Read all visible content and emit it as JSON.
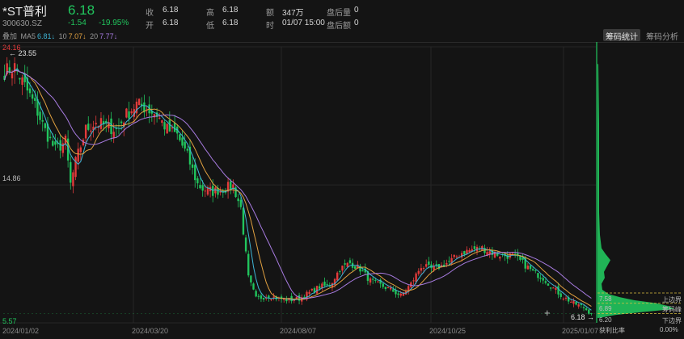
{
  "stock": {
    "name": "*ST普利",
    "code": "300630.SZ",
    "price": "6.18",
    "change": "-1.54",
    "change_pct": "-19.95%",
    "colors": {
      "down": "#21c55d",
      "up": "#e23b3b"
    }
  },
  "quote": {
    "close_label": "收",
    "close": "6.18",
    "open_label": "开",
    "open": "6.18",
    "high_label": "高",
    "high": "6.18",
    "low_label": "低",
    "low": "6.18",
    "amount_label": "额",
    "amount": "347万",
    "time_label": "时",
    "time": "01/07 15:00",
    "after_vol_label": "盘后量",
    "after_vol": "0",
    "after_amt_label": "盘后额",
    "after_amt": "0"
  },
  "ma": {
    "overlay_label": "叠加",
    "ma5_label": "MA5",
    "ma5": "6.81↓",
    "ma10_label": "10",
    "ma10": "7.07↓",
    "ma20_label": "20",
    "ma20": "7.77↓"
  },
  "tabs": [
    "筹码统计",
    "筹码分析"
  ],
  "axis": {
    "y_top": "24.16",
    "y_mid": "14.86",
    "y_bottom": "5.57",
    "max_marker": "23.55",
    "min_marker": "6.18",
    "x_labels": [
      "2024/01/02",
      "2024/03/20",
      "2024/08/07",
      "2024/10/25",
      "2025/01/07"
    ]
  },
  "chip": {
    "upper_label": "上边界",
    "upper": "7.58",
    "peak_label": "筹码峰",
    "peak": "6.89",
    "lower_label": "下边界",
    "lower": "6.20",
    "profit_label": "获利比率",
    "profit": "0.00%"
  },
  "chart_data": {
    "type": "candlestick",
    "ylim": [
      5.57,
      24.16
    ],
    "anchors": [
      [
        0,
        22.5
      ],
      [
        4,
        22.8
      ],
      [
        8,
        21.5
      ],
      [
        12,
        20.2
      ],
      [
        16,
        18.5
      ],
      [
        20,
        17.2
      ],
      [
        24,
        17.8
      ],
      [
        26,
        14.9
      ],
      [
        28,
        16.4
      ],
      [
        32,
        18.6
      ],
      [
        36,
        19.1
      ],
      [
        40,
        18.8
      ],
      [
        44,
        18.6
      ],
      [
        48,
        19.6
      ],
      [
        52,
        20.3
      ],
      [
        56,
        20.0
      ],
      [
        60,
        19.6
      ],
      [
        64,
        18.6
      ],
      [
        68,
        18.2
      ],
      [
        72,
        16.8
      ],
      [
        76,
        14.9
      ],
      [
        78,
        14.6
      ],
      [
        82,
        14.4
      ],
      [
        86,
        14.6
      ],
      [
        90,
        14.8
      ],
      [
        93,
        13.3
      ],
      [
        96,
        8.6
      ],
      [
        99,
        7.2
      ],
      [
        104,
        7.4
      ],
      [
        108,
        7.2
      ],
      [
        112,
        7.1
      ],
      [
        116,
        7.2
      ],
      [
        120,
        7.6
      ],
      [
        124,
        8.0
      ],
      [
        128,
        8.1
      ],
      [
        132,
        9.2
      ],
      [
        136,
        9.6
      ],
      [
        140,
        9.2
      ],
      [
        144,
        8.4
      ],
      [
        148,
        8.1
      ],
      [
        152,
        7.8
      ],
      [
        156,
        7.4
      ],
      [
        160,
        8.2
      ],
      [
        164,
        9.4
      ],
      [
        168,
        9.2
      ],
      [
        172,
        9.4
      ],
      [
        176,
        9.8
      ],
      [
        180,
        10.3
      ],
      [
        184,
        10.5
      ],
      [
        188,
        10.6
      ],
      [
        192,
        10.3
      ],
      [
        196,
        10.1
      ],
      [
        200,
        10.1
      ],
      [
        204,
        9.6
      ],
      [
        208,
        9.0
      ],
      [
        212,
        8.6
      ],
      [
        216,
        7.9
      ],
      [
        220,
        7.3
      ],
      [
        224,
        6.9
      ],
      [
        228,
        6.6
      ],
      [
        231,
        6.18
      ]
    ],
    "chip_distribution": [
      [
        5.9,
        0.02
      ],
      [
        6.1,
        0.22
      ],
      [
        6.3,
        0.55
      ],
      [
        6.5,
        0.95
      ],
      [
        6.7,
        0.88
      ],
      [
        6.9,
        0.72
      ],
      [
        7.1,
        0.45
      ],
      [
        7.3,
        0.28
      ],
      [
        7.5,
        0.14
      ],
      [
        7.8,
        0.06
      ],
      [
        8.2,
        0.05
      ],
      [
        8.6,
        0.09
      ],
      [
        9.0,
        0.08
      ],
      [
        9.4,
        0.12
      ],
      [
        9.8,
        0.16
      ],
      [
        10.2,
        0.1
      ],
      [
        10.6,
        0.05
      ],
      [
        11.5,
        0.03
      ],
      [
        13,
        0.02
      ],
      [
        15,
        0.02
      ],
      [
        17,
        0.02
      ],
      [
        19,
        0.02
      ],
      [
        21,
        0.015
      ],
      [
        23,
        0.01
      ]
    ]
  }
}
